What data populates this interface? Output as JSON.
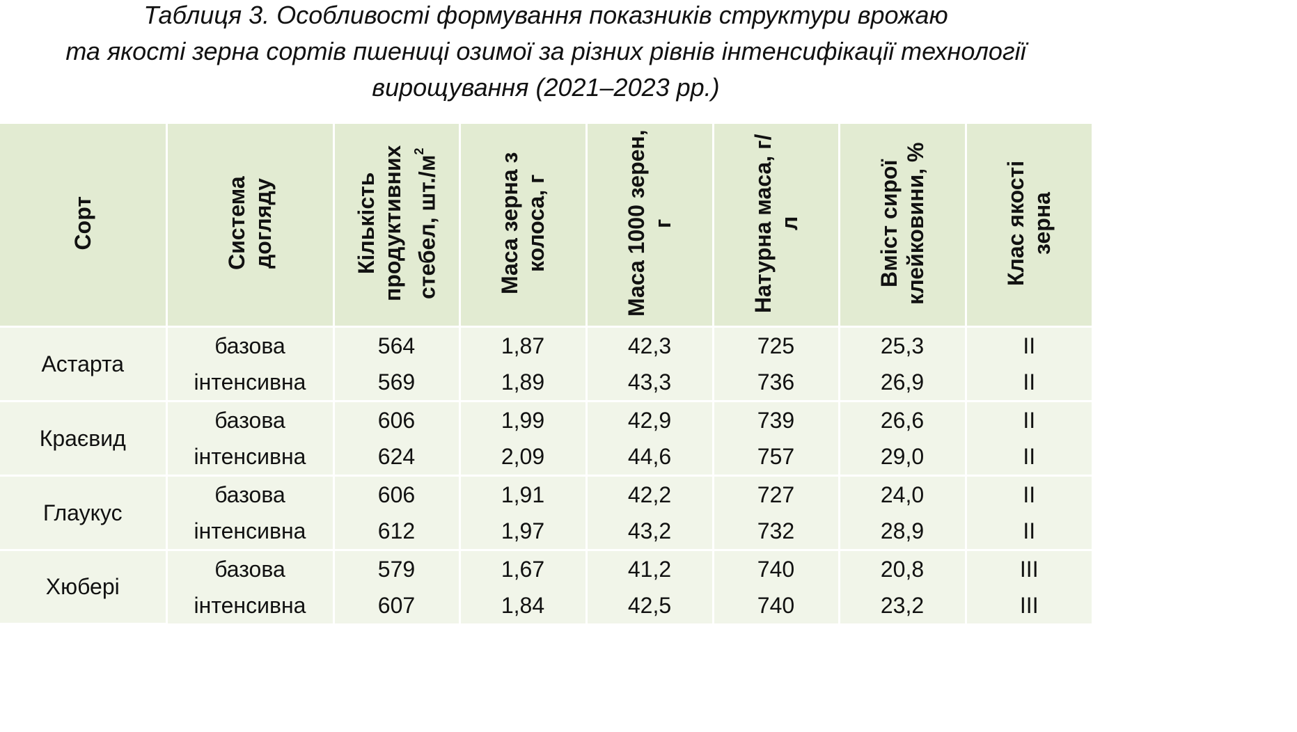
{
  "title": {
    "line1": "Таблиця 3. Особливості формування показників структури врожаю",
    "line2": "та якості зерна сортів пшениці озимої за різних рівнів інтенсифікації технології",
    "line3": "вирощування (2021–2023 рр.)"
  },
  "headers": {
    "variety": "Сорт",
    "care_system": "Система догляду",
    "stems": "Кількість продуктивних стебел, шт./м",
    "stems_sup": "2",
    "ear_mass": "Маса зерна з колоса, г",
    "tgw": "Маса 1000 зерен, г",
    "test_weight": "Натурна маса, г/л",
    "gluten": "Вміст сирої клейковини, %",
    "quality_class": "Клас якості зерна"
  },
  "groups": [
    {
      "variety": "Астарта",
      "rows": [
        {
          "system": "базова",
          "stems": "564",
          "ear_mass": "1,87",
          "tgw": "42,3",
          "test_weight": "725",
          "gluten": "25,3",
          "class": "II"
        },
        {
          "system": "інтенсивна",
          "stems": "569",
          "ear_mass": "1,89",
          "tgw": "43,3",
          "test_weight": "736",
          "gluten": "26,9",
          "class": "II"
        }
      ]
    },
    {
      "variety": "Краєвид",
      "rows": [
        {
          "system": "базова",
          "stems": "606",
          "ear_mass": "1,99",
          "tgw": "42,9",
          "test_weight": "739",
          "gluten": "26,6",
          "class": "II"
        },
        {
          "system": "інтенсивна",
          "stems": "624",
          "ear_mass": "2,09",
          "tgw": "44,6",
          "test_weight": "757",
          "gluten": "29,0",
          "class": "II"
        }
      ]
    },
    {
      "variety": "Глаукус",
      "rows": [
        {
          "system": "базова",
          "stems": "606",
          "ear_mass": "1,91",
          "tgw": "42,2",
          "test_weight": "727",
          "gluten": "24,0",
          "class": "II"
        },
        {
          "system": "інтенсивна",
          "stems": "612",
          "ear_mass": "1,97",
          "tgw": "43,2",
          "test_weight": "732",
          "gluten": "28,9",
          "class": "II"
        }
      ]
    },
    {
      "variety": "Хюбері",
      "rows": [
        {
          "system": "базова",
          "stems": "579",
          "ear_mass": "1,67",
          "tgw": "41,2",
          "test_weight": "740",
          "gluten": "20,8",
          "class": "III"
        },
        {
          "system": "інтенсивна",
          "stems": "607",
          "ear_mass": "1,84",
          "tgw": "42,5",
          "test_weight": "740",
          "gluten": "23,2",
          "class": "III"
        }
      ]
    }
  ],
  "colors": {
    "header_bg": "#e2ebd2",
    "body_bg": "#f1f5e9",
    "divider": "#ffffff"
  }
}
